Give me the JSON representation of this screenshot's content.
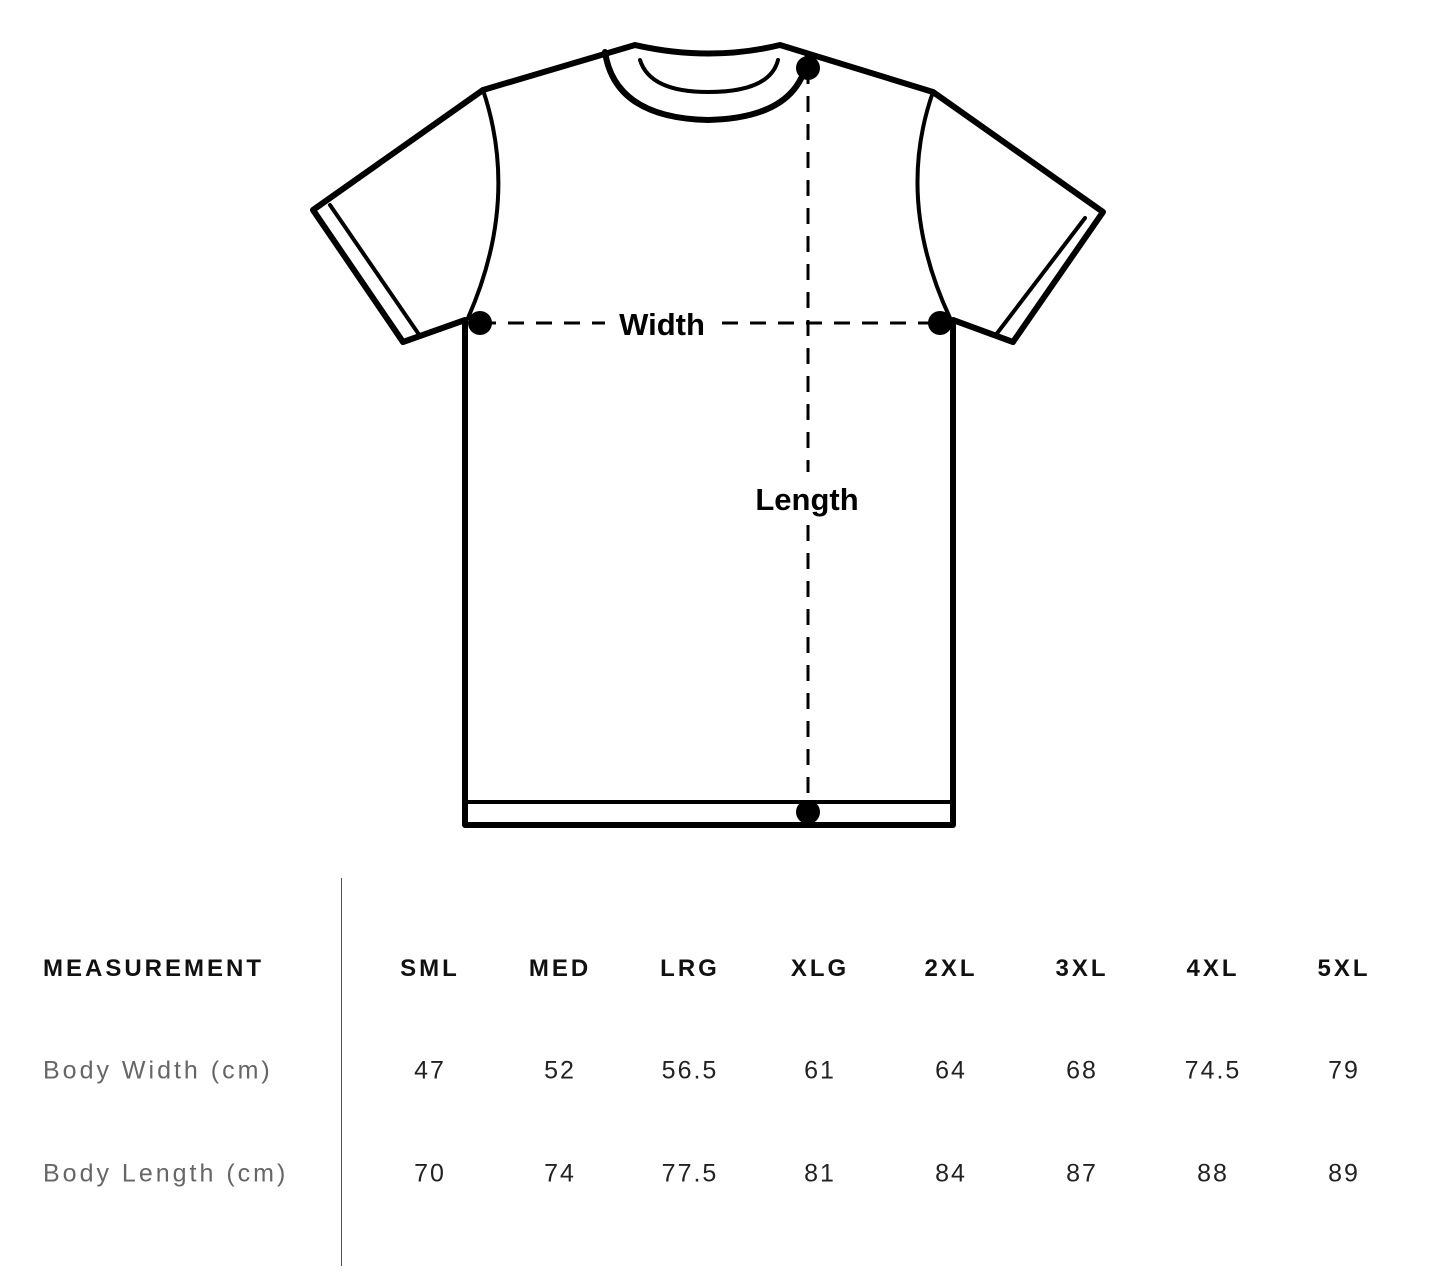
{
  "diagram": {
    "width_label": "Width",
    "length_label": "Length"
  },
  "table": {
    "header_label": "MEASUREMENT",
    "sizes": [
      "SML",
      "MED",
      "LRG",
      "XLG",
      "2XL",
      "3XL",
      "4XL",
      "5XL"
    ],
    "rows": [
      {
        "label": "Body Width (cm)",
        "values": [
          "47",
          "52",
          "56.5",
          "61",
          "64",
          "68",
          "74.5",
          "79"
        ]
      },
      {
        "label": "Body Length (cm)",
        "values": [
          "70",
          "74",
          "77.5",
          "81",
          "84",
          "87",
          "88",
          "89"
        ]
      }
    ]
  }
}
